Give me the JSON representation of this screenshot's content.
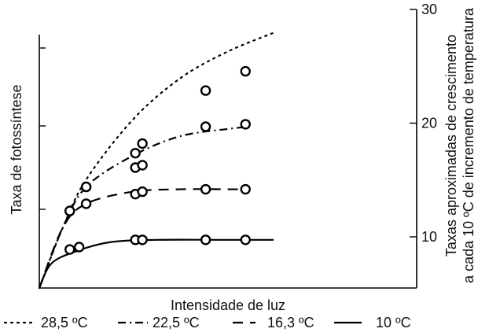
{
  "chart_data": {
    "type": "line",
    "xlabel": "Intensidade de luz",
    "ylabel": "Taxa de fotossíntese",
    "y2label_line1": "Taxas aproximadas de crescimento",
    "y2label_line2": "a cada 10 ºC de incremento de temperatura",
    "x_ticks_shown": false,
    "y_ticks_shown": false,
    "y2_ticks": [
      10,
      20,
      30
    ],
    "y2_tick_labels": [
      "10",
      "20",
      "30"
    ],
    "y2lim": [
      5.5,
      30
    ],
    "series": [
      {
        "name": "28,5 ºC",
        "dash": "dotted",
        "points": [
          [
            0.0,
            0.0
          ],
          [
            0.1,
            0.25
          ],
          [
            0.2,
            0.45
          ],
          [
            0.4,
            0.7
          ],
          [
            0.6,
            0.87
          ],
          [
            0.8,
            0.98
          ],
          [
            1.0,
            1.06
          ]
        ],
        "markers": [
          [
            0.13,
            0.32
          ],
          [
            0.2,
            0.42
          ],
          [
            0.41,
            0.56
          ],
          [
            0.44,
            0.6
          ],
          [
            0.71,
            0.82
          ],
          [
            0.88,
            0.9
          ]
        ]
      },
      {
        "name": "22,5 ºC",
        "dash": "dash-dot",
        "points": [
          [
            0.0,
            0.0
          ],
          [
            0.1,
            0.25
          ],
          [
            0.2,
            0.42
          ],
          [
            0.4,
            0.55
          ],
          [
            0.6,
            0.63
          ],
          [
            0.8,
            0.66
          ],
          [
            0.9,
            0.67
          ]
        ],
        "markers": [
          [
            0.13,
            0.32
          ],
          [
            0.2,
            0.42
          ],
          [
            0.41,
            0.5
          ],
          [
            0.44,
            0.51
          ],
          [
            0.71,
            0.67
          ],
          [
            0.88,
            0.68
          ]
        ]
      },
      {
        "name": "16,3 ºC",
        "dash": "dashed",
        "points": [
          [
            0.0,
            0.0
          ],
          [
            0.1,
            0.25
          ],
          [
            0.2,
            0.35
          ],
          [
            0.4,
            0.4
          ],
          [
            0.6,
            0.41
          ],
          [
            0.8,
            0.41
          ],
          [
            0.9,
            0.41
          ]
        ],
        "markers": [
          [
            0.2,
            0.35
          ],
          [
            0.41,
            0.39
          ],
          [
            0.44,
            0.4
          ],
          [
            0.71,
            0.41
          ],
          [
            0.88,
            0.41
          ]
        ]
      },
      {
        "name": "10 ºC",
        "dash": "solid",
        "points": [
          [
            0.0,
            0.0
          ],
          [
            0.05,
            0.1
          ],
          [
            0.15,
            0.15
          ],
          [
            0.3,
            0.19
          ],
          [
            0.5,
            0.2
          ],
          [
            0.8,
            0.2
          ],
          [
            1.0,
            0.2
          ]
        ],
        "markers": [
          [
            0.13,
            0.16
          ],
          [
            0.17,
            0.17
          ],
          [
            0.41,
            0.2
          ],
          [
            0.44,
            0.2
          ],
          [
            0.71,
            0.2
          ],
          [
            0.88,
            0.2
          ]
        ]
      }
    ],
    "legend": [
      {
        "style": "dotted",
        "label": "28,5 ºC"
      },
      {
        "style": "dash-dot",
        "label": "22,5 ºC"
      },
      {
        "style": "dashed",
        "label": "16,3 ºC"
      },
      {
        "style": "solid",
        "label": "10 ºC"
      }
    ],
    "legend_position": "bottom"
  }
}
